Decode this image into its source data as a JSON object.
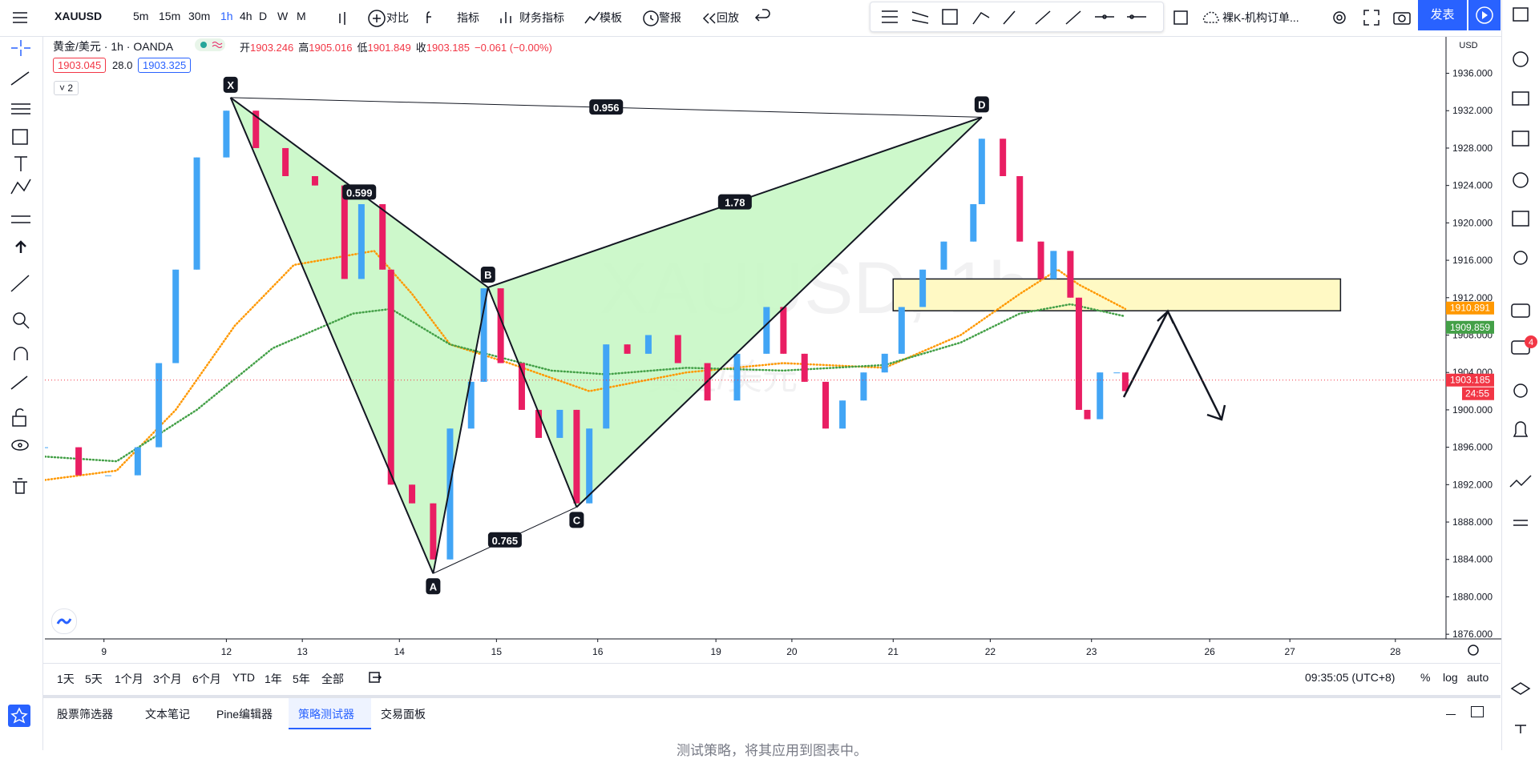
{
  "toolbar": {
    "symbol": "XAUUSD",
    "intervals": [
      "5m",
      "15m",
      "30m",
      "1h",
      "4h",
      "D",
      "W",
      "M"
    ],
    "buttons": [
      "对比",
      "指标",
      "财务指标",
      "模板",
      "警报",
      "回放"
    ],
    "layout_name": "裸K-机构订单...",
    "publish": "发表"
  },
  "header": {
    "instrument": "黄金/美元 · 1h · OANDA",
    "ohlc": [
      {
        "label": "开",
        "value": "1903.246"
      },
      {
        "label": "高",
        "value": "1905.016"
      },
      {
        "label": "低",
        "value": "1901.849"
      },
      {
        "label": "收",
        "value": "1903.185"
      }
    ],
    "change": "−0.061 (−0.00%)",
    "bid": "1903.045",
    "spread": "28.0",
    "ask": "1903.325",
    "indicators_count": "2"
  },
  "watermark": {
    "symbol": "XAUUSD, 1h",
    "name": "黄金/美元"
  },
  "chart_data": {
    "type": "candlestick",
    "up_color": "#42a5f5",
    "down_color": "#e91e63",
    "x": [
      0,
      8,
      15,
      22,
      27,
      31,
      36,
      43,
      50,
      57,
      64,
      71,
      75,
      80,
      82,
      87,
      92,
      96,
      101,
      104,
      108,
      113,
      117,
      122,
      126,
      129,
      133,
      138,
      143,
      150,
      157,
      164,
      171,
      175,
      180,
      185,
      189,
      194,
      199,
      203,
      208,
      213,
      220,
      222,
      227,
      231,
      236,
      239,
      243,
      245,
      247,
      250,
      254,
      256
    ],
    "values": [
      1896,
      1893,
      1893,
      1896,
      1905,
      1915,
      1927,
      1932,
      1928,
      1925,
      1924,
      1914,
      1922,
      1915,
      1892,
      1890,
      1884,
      1898,
      1903,
      1913,
      1905,
      1900,
      1897,
      1900,
      1890,
      1898,
      1907,
      1906,
      1908,
      1905,
      1901,
      1906,
      1911,
      1906,
      1903,
      1898,
      1901,
      1904,
      1906,
      1911,
      1915,
      1918,
      1922,
      1929,
      1925,
      1918,
      1914,
      1917,
      1912,
      1900,
      1899,
      1904,
      1904,
      1902
    ],
    "overlays": [
      {
        "color": "#ff9800",
        "x": [
          0,
          17,
          31,
          45,
          59,
          78,
          87,
          96,
          110,
          129,
          152,
          175,
          199,
          217,
          231,
          240,
          245,
          256
        ],
        "values": [
          1892.5,
          1893.5,
          1900,
          1909,
          1915.5,
          1917,
          1912.4,
          1907,
          1905,
          1902,
          1904,
          1905,
          1904.5,
          1908,
          1912.4,
          1915,
          1913.4,
          1910.8
        ]
      },
      {
        "color": "#43a047",
        "x": [
          0,
          17,
          36,
          54,
          73,
          82,
          96,
          120,
          133,
          152,
          175,
          199,
          217,
          231,
          243,
          256
        ],
        "values": [
          1895,
          1894.5,
          1900,
          1906.6,
          1910.3,
          1910.8,
          1907,
          1904.2,
          1903.8,
          1904.5,
          1904.2,
          1904.8,
          1907.2,
          1910.3,
          1911.3,
          1910
        ]
      }
    ],
    "pattern": {
      "color": "#c8f7c5",
      "points": [
        {
          "label": "X",
          "x": 44,
          "y": 1933.4
        },
        {
          "label": "A",
          "x": 92,
          "y": 1882.5
        },
        {
          "label": "B",
          "x": 105,
          "y": 1913.1
        },
        {
          "label": "C",
          "x": 126,
          "y": 1889.6
        },
        {
          "label": "D",
          "x": 222,
          "y": 1931.3
        }
      ],
      "ratios": [
        0.599,
        1.78,
        0.956,
        0.765
      ]
    },
    "zone": {
      "x": [
        201,
        307
      ],
      "y": [
        1910.6,
        1914
      ],
      "color": "#fff9c4"
    },
    "price_tags": [
      {
        "value": 1910.891,
        "color": "#ff9800"
      },
      {
        "value": 1909.859,
        "color": "#43a047"
      },
      {
        "value": 1903.185,
        "color": "#f23645"
      }
    ],
    "countdown": "24:55",
    "currency": "USD",
    "xlim": [
      0,
      332
    ],
    "ylim": [
      1875.5,
      1939.9
    ],
    "yticks": [
      {
        "value": 1876,
        "label": "1876.000"
      },
      {
        "value": 1880,
        "label": "1880.000"
      },
      {
        "value": 1884,
        "label": "1884.000"
      },
      {
        "value": 1888,
        "label": "1888.000"
      },
      {
        "value": 1892,
        "label": "1892.000"
      },
      {
        "value": 1896,
        "label": "1896.000"
      },
      {
        "value": 1900,
        "label": "1900.000"
      },
      {
        "value": 1904,
        "label": "1904.000"
      },
      {
        "value": 1908,
        "label": "1908.000"
      },
      {
        "value": 1912,
        "label": "1912.000"
      },
      {
        "value": 1916,
        "label": "1916.000"
      },
      {
        "value": 1920,
        "label": "1920.000"
      },
      {
        "value": 1924,
        "label": "1924.000"
      },
      {
        "value": 1928,
        "label": "1928.000"
      },
      {
        "value": 1932,
        "label": "1932.000"
      },
      {
        "value": 1936,
        "label": "1936.000"
      }
    ],
    "xticks": [
      {
        "value": 14,
        "label": "9"
      },
      {
        "value": 43,
        "label": "12"
      },
      {
        "value": 61,
        "label": "13"
      },
      {
        "value": 84,
        "label": "14"
      },
      {
        "value": 107,
        "label": "15"
      },
      {
        "value": 131,
        "label": "16"
      },
      {
        "value": 159,
        "label": "19"
      },
      {
        "value": 177,
        "label": "20"
      },
      {
        "value": 201,
        "label": "21"
      },
      {
        "value": 224,
        "label": "22"
      },
      {
        "value": 248,
        "label": "23"
      },
      {
        "value": 276,
        "label": "26"
      },
      {
        "value": 295,
        "label": "27"
      },
      {
        "value": 320,
        "label": "28"
      }
    ]
  },
  "range_bar": {
    "ranges": [
      "1天",
      "5天",
      "1个月",
      "3个月",
      "6个月",
      "YTD",
      "1年",
      "5年",
      "全部"
    ],
    "time": "09:35:05 (UTC+8)",
    "options": [
      "%",
      "log",
      "auto"
    ]
  },
  "bottom_panel": {
    "tabs": [
      "股票筛选器",
      "文本笔记",
      "Pine编辑器",
      "策略测试器",
      "交易面板"
    ],
    "active": 3,
    "message": "测试策略，将其应用到图表中。"
  },
  "sidebar": {
    "badge": "4"
  }
}
